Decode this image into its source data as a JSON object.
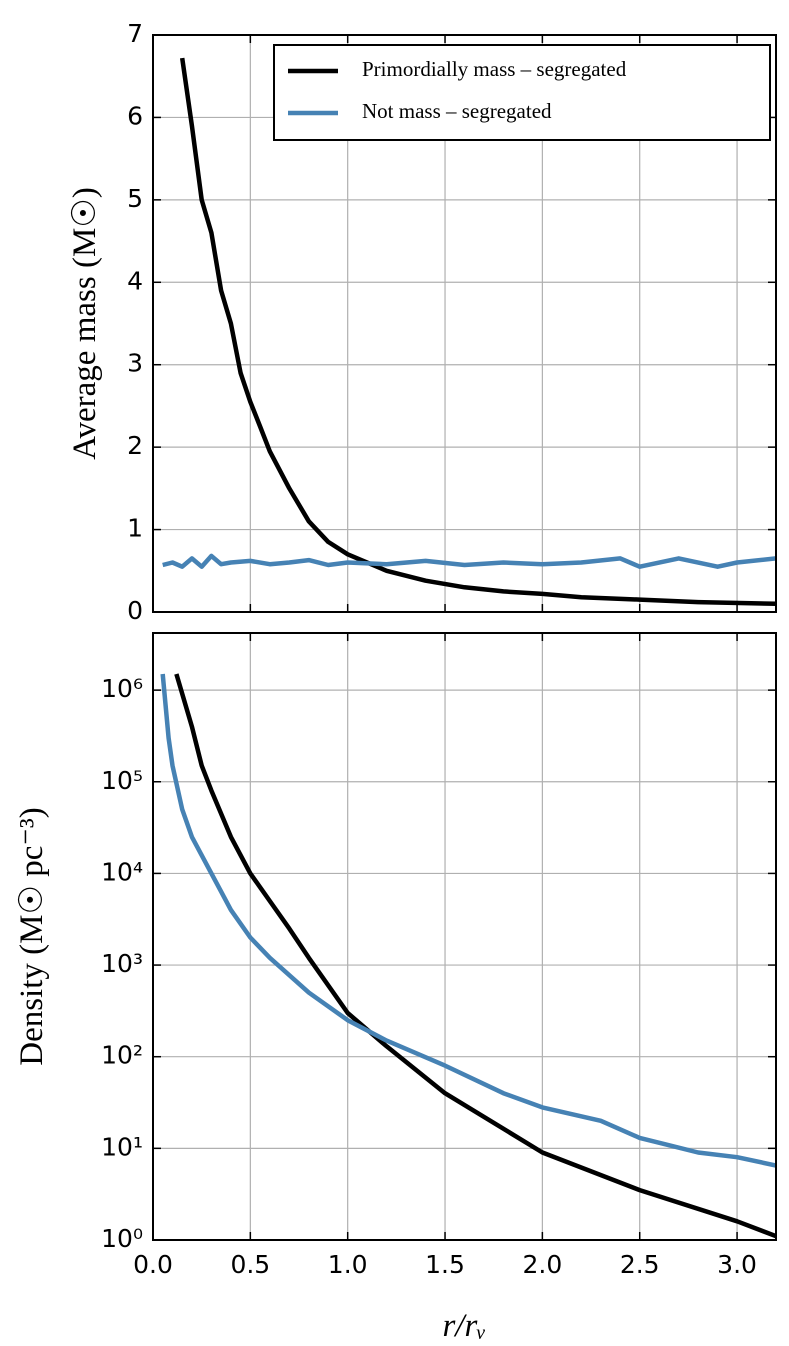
{
  "chart_data": [
    {
      "type": "line",
      "ylabel": "Average mass (M☉)",
      "legend": "upper right",
      "grid": true,
      "xlim": [
        0,
        3.2
      ],
      "ylim": [
        0,
        7
      ],
      "xticks": [
        0,
        0.5,
        1,
        1.5,
        2,
        2.5,
        3
      ],
      "yticks": [
        0,
        1,
        2,
        3,
        4,
        5,
        6,
        7
      ],
      "series": [
        {
          "name": "Primordially mass – segregated",
          "color": "#000000",
          "x": [
            0.15,
            0.2,
            0.25,
            0.3,
            0.35,
            0.4,
            0.45,
            0.5,
            0.55,
            0.6,
            0.7,
            0.8,
            0.9,
            1.0,
            1.2,
            1.4,
            1.6,
            1.8,
            2.0,
            2.2,
            2.5,
            2.8,
            3.2
          ],
          "values": [
            6.72,
            5.9,
            5.0,
            4.6,
            3.9,
            3.5,
            2.9,
            2.55,
            2.25,
            1.95,
            1.5,
            1.1,
            0.85,
            0.7,
            0.5,
            0.38,
            0.3,
            0.25,
            0.22,
            0.18,
            0.15,
            0.12,
            0.1
          ]
        },
        {
          "name": "Not mass – segregated",
          "color": "#4682b4",
          "x": [
            0.05,
            0.1,
            0.15,
            0.2,
            0.25,
            0.3,
            0.35,
            0.4,
            0.5,
            0.6,
            0.7,
            0.8,
            0.9,
            1.0,
            1.2,
            1.4,
            1.6,
            1.8,
            2.0,
            2.2,
            2.4,
            2.5,
            2.7,
            2.9,
            3.0,
            3.2
          ],
          "values": [
            0.57,
            0.6,
            0.55,
            0.65,
            0.55,
            0.68,
            0.58,
            0.6,
            0.62,
            0.58,
            0.6,
            0.63,
            0.57,
            0.6,
            0.58,
            0.62,
            0.57,
            0.6,
            0.58,
            0.6,
            0.65,
            0.55,
            0.65,
            0.55,
            0.6,
            0.65
          ]
        }
      ]
    },
    {
      "type": "line",
      "ylabel": "Density (M☉ pc⁻³)",
      "xlabel": "r/rᵥ",
      "log_scale": true,
      "grid": true,
      "xlim": [
        0,
        3.2
      ],
      "ylim": [
        1,
        4200000
      ],
      "xticks": [
        {
          "value": 0,
          "label": "0.0"
        },
        {
          "value": 0.5,
          "label": "0.5"
        },
        {
          "value": 1,
          "label": "1.0"
        },
        {
          "value": 1.5,
          "label": "1.5"
        },
        {
          "value": 2,
          "label": "2.0"
        },
        {
          "value": 2.5,
          "label": "2.5"
        },
        {
          "value": 3,
          "label": "3.0"
        }
      ],
      "yticks": [
        {
          "value": 1,
          "label": "10⁰"
        },
        {
          "value": 10,
          "label": "10¹"
        },
        {
          "value": 100,
          "label": "10²"
        },
        {
          "value": 1000,
          "label": "10³"
        },
        {
          "value": 10000,
          "label": "10⁴"
        },
        {
          "value": 100000,
          "label": "10⁵"
        },
        {
          "value": 1000000,
          "label": "10⁶"
        }
      ],
      "series": [
        {
          "color": "#000000",
          "x": [
            0.12,
            0.2,
            0.25,
            0.3,
            0.4,
            0.5,
            0.6,
            0.7,
            0.8,
            1.0,
            1.2,
            1.5,
            2.0,
            2.5,
            3.0,
            3.2
          ],
          "values": [
            1500000,
            400000,
            150000,
            80000,
            25000,
            10000,
            5000,
            2500,
            1200,
            300,
            130,
            40,
            9,
            3.5,
            1.6,
            1.1
          ]
        },
        {
          "color": "#4682b4",
          "x": [
            0.05,
            0.08,
            0.1,
            0.15,
            0.2,
            0.3,
            0.4,
            0.5,
            0.6,
            0.8,
            1.0,
            1.2,
            1.5,
            1.8,
            2.0,
            2.3,
            2.5,
            2.8,
            3.0,
            3.2
          ],
          "values": [
            1500000,
            300000,
            150000,
            50000,
            25000,
            10000,
            4000,
            2000,
            1200,
            500,
            250,
            150,
            80,
            40,
            28,
            20,
            13,
            9,
            8,
            6.5
          ]
        }
      ]
    }
  ]
}
